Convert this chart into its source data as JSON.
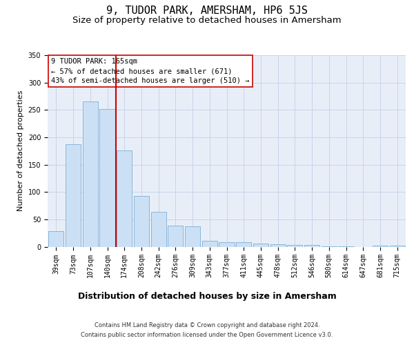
{
  "title": "9, TUDOR PARK, AMERSHAM, HP6 5JS",
  "subtitle": "Size of property relative to detached houses in Amersham",
  "xlabel": "Distribution of detached houses by size in Amersham",
  "ylabel": "Number of detached properties",
  "categories": [
    "39sqm",
    "73sqm",
    "107sqm",
    "140sqm",
    "174sqm",
    "208sqm",
    "242sqm",
    "276sqm",
    "309sqm",
    "343sqm",
    "377sqm",
    "411sqm",
    "445sqm",
    "478sqm",
    "512sqm",
    "546sqm",
    "580sqm",
    "614sqm",
    "647sqm",
    "681sqm",
    "715sqm"
  ],
  "values": [
    29,
    187,
    265,
    252,
    176,
    93,
    64,
    39,
    37,
    11,
    8,
    8,
    6,
    4,
    3,
    3,
    1,
    1,
    0,
    2,
    2
  ],
  "bar_color": "#cce0f5",
  "bar_edge_color": "#7bafd4",
  "vline_color": "#cc0000",
  "vline_pos": 3.5,
  "annotation_line1": "9 TUDOR PARK: 165sqm",
  "annotation_line2": "← 57% of detached houses are smaller (671)",
  "annotation_line3": "43% of semi-detached houses are larger (510) →",
  "annotation_box_color": "#ffffff",
  "annotation_box_edge": "#cc0000",
  "grid_color": "#c8d4e8",
  "background_color": "#e8eef8",
  "ylim": [
    0,
    350
  ],
  "yticks": [
    0,
    50,
    100,
    150,
    200,
    250,
    300,
    350
  ],
  "footnote1": "Contains HM Land Registry data © Crown copyright and database right 2024.",
  "footnote2": "Contains public sector information licensed under the Open Government Licence v3.0.",
  "title_fontsize": 11,
  "subtitle_fontsize": 9.5,
  "xlabel_fontsize": 9,
  "ylabel_fontsize": 8,
  "tick_fontsize": 7,
  "annotation_fontsize": 7.5,
  "footnote_fontsize": 6
}
